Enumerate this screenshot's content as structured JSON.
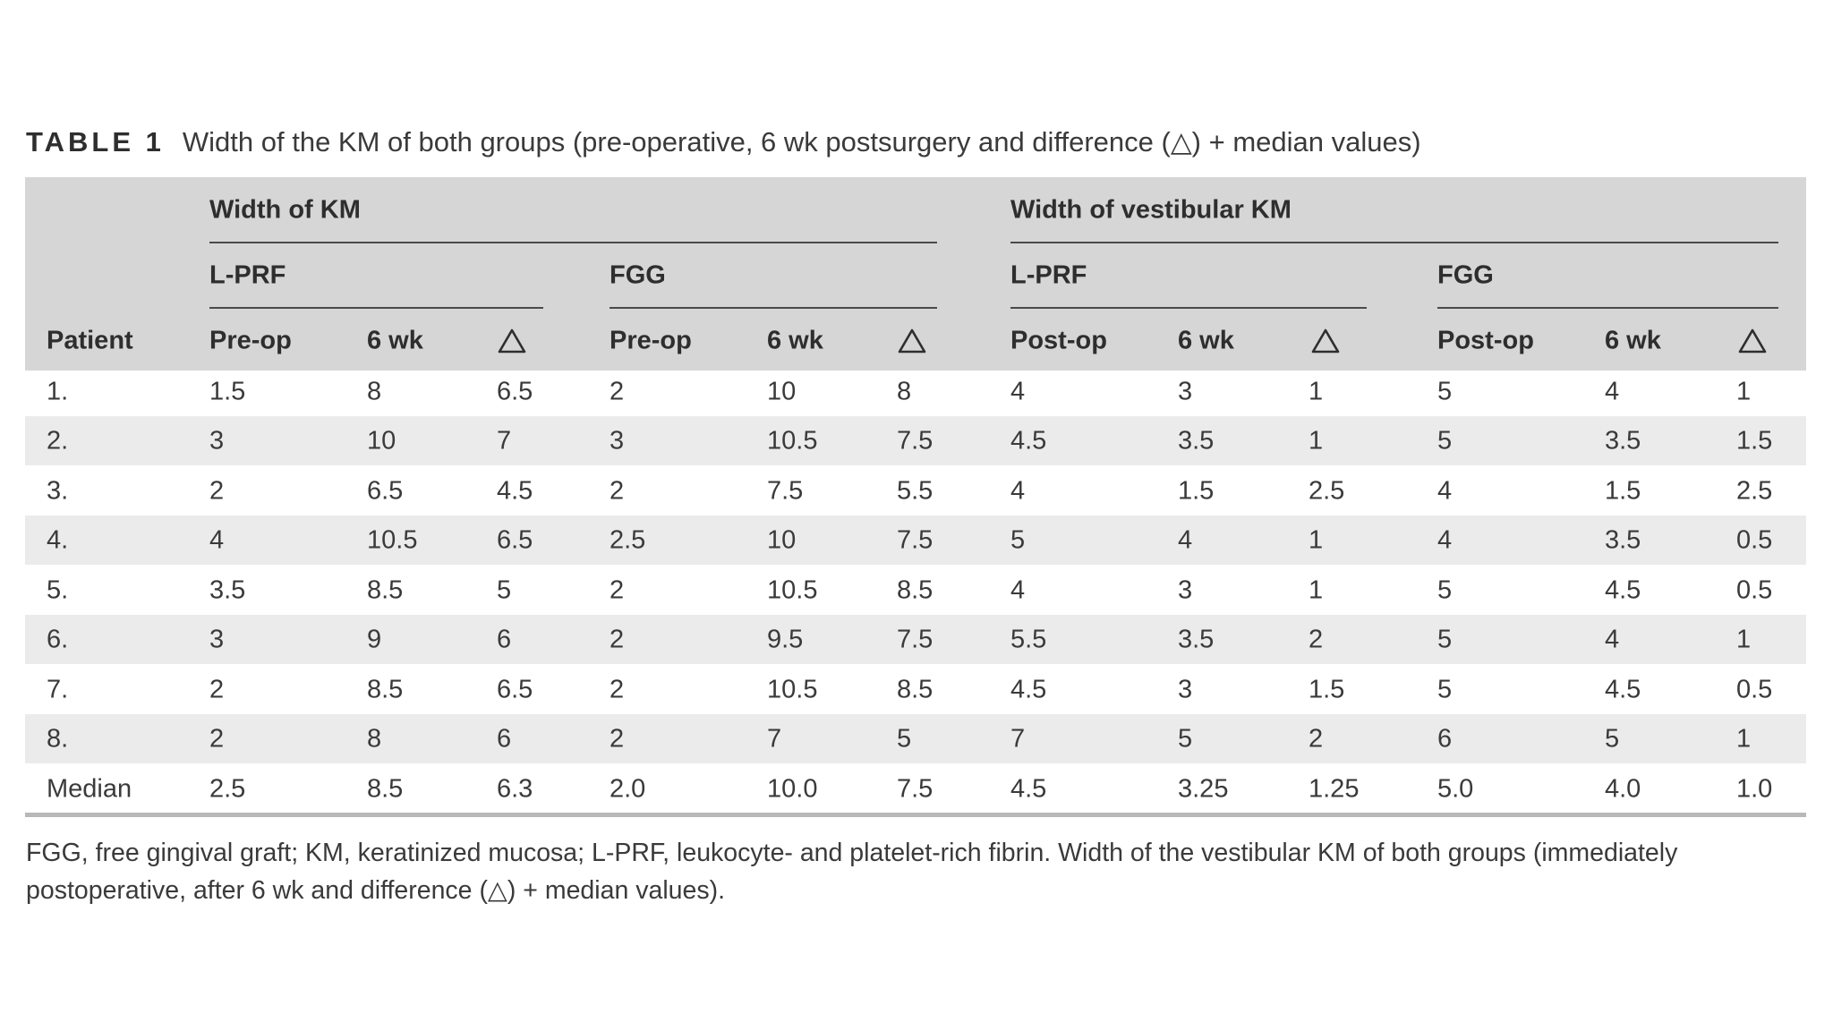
{
  "caption": {
    "label": "TABLE 1",
    "text": "Width of the KM of both groups (pre-operative, 6 wk postsurgery and difference (△) + median values)"
  },
  "header": {
    "group1": "Width of KM",
    "group2": "Width of vestibular KM",
    "sub1": "L-PRF",
    "sub2": "FGG",
    "sub3": "L-PRF",
    "sub4": "FGG",
    "patient": "Patient",
    "columns": [
      "Pre-op",
      "6 wk",
      "△",
      "Pre-op",
      "6 wk",
      "△",
      "Post-op",
      "6 wk",
      "△",
      "Post-op",
      "6 wk",
      "△"
    ]
  },
  "rows": [
    [
      "1.",
      "1.5",
      "8",
      "6.5",
      "2",
      "10",
      "8",
      "4",
      "3",
      "1",
      "5",
      "4",
      "1"
    ],
    [
      "2.",
      "3",
      "10",
      "7",
      "3",
      "10.5",
      "7.5",
      "4.5",
      "3.5",
      "1",
      "5",
      "3.5",
      "1.5"
    ],
    [
      "3.",
      "2",
      "6.5",
      "4.5",
      "2",
      "7.5",
      "5.5",
      "4",
      "1.5",
      "2.5",
      "4",
      "1.5",
      "2.5"
    ],
    [
      "4.",
      "4",
      "10.5",
      "6.5",
      "2.5",
      "10",
      "7.5",
      "5",
      "4",
      "1",
      "4",
      "3.5",
      "0.5"
    ],
    [
      "5.",
      "3.5",
      "8.5",
      "5",
      "2",
      "10.5",
      "8.5",
      "4",
      "3",
      "1",
      "5",
      "4.5",
      "0.5"
    ],
    [
      "6.",
      "3",
      "9",
      "6",
      "2",
      "9.5",
      "7.5",
      "5.5",
      "3.5",
      "2",
      "5",
      "4",
      "1"
    ],
    [
      "7.",
      "2",
      "8.5",
      "6.5",
      "2",
      "10.5",
      "8.5",
      "4.5",
      "3",
      "1.5",
      "5",
      "4.5",
      "0.5"
    ],
    [
      "8.",
      "2",
      "8",
      "6",
      "2",
      "7",
      "5",
      "7",
      "5",
      "2",
      "6",
      "5",
      "1"
    ],
    [
      "Median",
      "2.5",
      "8.5",
      "6.3",
      "2.0",
      "10.0",
      "7.5",
      "4.5",
      "3.25",
      "1.25",
      "5.0",
      "4.0",
      "1.0"
    ]
  ],
  "footnote": "FGG, free gingival graft; KM, keratinized mucosa; L-PRF, leukocyte- and platelet-rich fibrin. Width of the vestibular KM of both groups (immediately postoperative, after 6 wk and difference (△) + median values)."
}
